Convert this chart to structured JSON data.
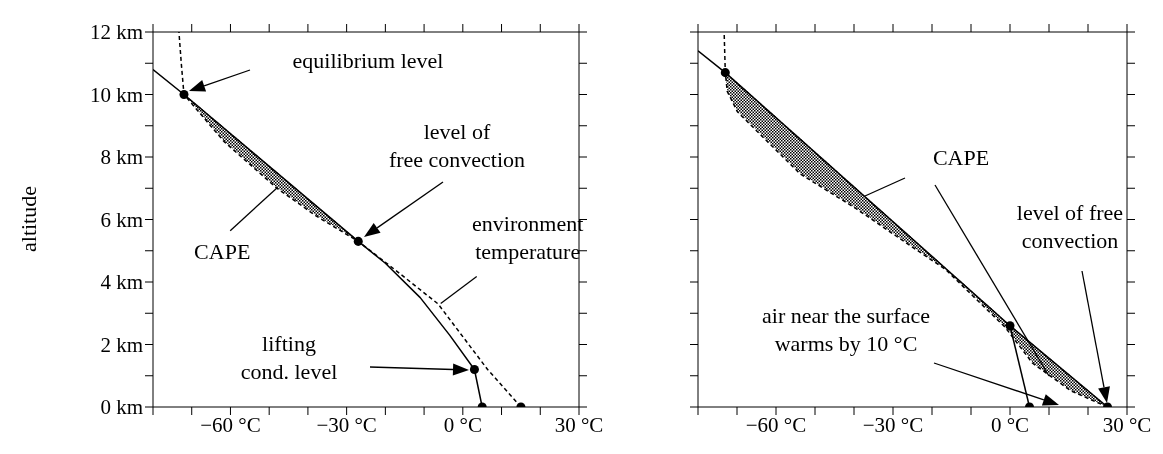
{
  "chart_data": [
    {
      "type": "line",
      "ylabel": "altitude",
      "xlim": [
        -80,
        30
      ],
      "ylim": [
        0,
        12
      ],
      "xticks": [
        {
          "value": -80,
          "label": null
        },
        {
          "value": -70,
          "label": null
        },
        {
          "value": -60,
          "label": "−60 °C"
        },
        {
          "value": -50,
          "label": null
        },
        {
          "value": -40,
          "label": null
        },
        {
          "value": -30,
          "label": "−30 °C"
        },
        {
          "value": -20,
          "label": null
        },
        {
          "value": -10,
          "label": null
        },
        {
          "value": 0,
          "label": "0 °C"
        },
        {
          "value": 10,
          "label": null
        },
        {
          "value": 20,
          "label": null
        },
        {
          "value": 30,
          "label": "30 °C"
        }
      ],
      "yticks": [
        {
          "value": 0,
          "label": "0 km"
        },
        {
          "value": 1,
          "label": null
        },
        {
          "value": 2,
          "label": "2 km"
        },
        {
          "value": 3,
          "label": null
        },
        {
          "value": 4,
          "label": "4 km"
        },
        {
          "value": 5,
          "label": null
        },
        {
          "value": 6,
          "label": "6 km"
        },
        {
          "value": 7,
          "label": null
        },
        {
          "value": 8,
          "label": "8 km"
        },
        {
          "value": 9,
          "label": null
        },
        {
          "value": 10,
          "label": "10 km"
        },
        {
          "value": 11,
          "label": null
        },
        {
          "value": 12,
          "label": "12 km"
        }
      ],
      "series": [
        {
          "type": "area",
          "color": "#000000",
          "x": [
            -27,
            -72,
            -61.7,
            -48,
            -37.7,
            -27
          ],
          "values": [
            5.3,
            10,
            8.5,
            7.0,
            6.1,
            5.3
          ]
        },
        {
          "type": "line",
          "line_style": "dashed",
          "color": "#000000",
          "x": [
            15,
            6.4,
            -6.4,
            -17.6,
            -27,
            -37.7,
            -48,
            -61.7,
            -72,
            -72.7,
            -73.3
          ],
          "values": [
            0,
            1.2,
            3.3,
            4.4,
            5.3,
            6.1,
            7.0,
            8.5,
            10,
            11,
            12
          ]
        },
        {
          "type": "line",
          "line_style": "solid",
          "color": "#000000",
          "x": [
            5,
            3,
            -3.4,
            -11,
            -20,
            -27,
            -72,
            -80
          ],
          "values": [
            0,
            1.2,
            2.3,
            3.5,
            4.6,
            5.3,
            10,
            10.8
          ]
        },
        {
          "type": "scatter",
          "marker": "circle",
          "color": "#000000",
          "x": [
            15,
            5,
            3,
            -27,
            -72
          ],
          "values": [
            0,
            0,
            1.2,
            5.3,
            10
          ]
        }
      ],
      "annotations": [
        "equilibrium level",
        "level of\nfree convection",
        {
          "text": "CAPE",
          "x": -48,
          "y": 7.0
        },
        {
          "text": "environment\ntemperature",
          "x": -6.4,
          "y": 3.3
        },
        "lifting\ncond. level"
      ]
    },
    {
      "type": "line",
      "xlim": [
        -80,
        30
      ],
      "ylim": [
        0,
        12
      ],
      "tick_labels": "x",
      "xticks": [
        {
          "value": -80,
          "label": null
        },
        {
          "value": -70,
          "label": null
        },
        {
          "value": -60,
          "label": "−60 °C"
        },
        {
          "value": -50,
          "label": null
        },
        {
          "value": -40,
          "label": null
        },
        {
          "value": -30,
          "label": "−30 °C"
        },
        {
          "value": -20,
          "label": null
        },
        {
          "value": -10,
          "label": null
        },
        {
          "value": 0,
          "label": "0 °C"
        },
        {
          "value": 10,
          "label": null
        },
        {
          "value": 20,
          "label": null
        },
        {
          "value": 30,
          "label": "30 °C"
        }
      ],
      "yticks": [
        {
          "value": 0,
          "label": null
        },
        {
          "value": 1,
          "label": null
        },
        {
          "value": 2,
          "label": null
        },
        {
          "value": 3,
          "label": null
        },
        {
          "value": 4,
          "label": null
        },
        {
          "value": 5,
          "label": null
        },
        {
          "value": 6,
          "label": null
        },
        {
          "value": 7,
          "label": null
        },
        {
          "value": 8,
          "label": null
        },
        {
          "value": 9,
          "label": null
        },
        {
          "value": 10,
          "label": null
        },
        {
          "value": 11,
          "label": null
        },
        {
          "value": 12,
          "label": null
        }
      ],
      "series": [
        {
          "type": "area",
          "color": "#000000",
          "x": [
            25,
            0,
            -73,
            -72.5,
            -69.9,
            -62.8,
            -53.8,
            -39.6,
            -27.2,
            -16.5,
            -1.3,
            5.8,
            15.6,
            25
          ],
          "values": [
            0,
            2.6,
            10.7,
            10.1,
            9.45,
            8.57,
            7.46,
            6.36,
            5.3,
            4.4,
            2.56,
            1.4,
            0.52,
            0
          ]
        },
        {
          "type": "line",
          "line_style": "dashed",
          "color": "#000000",
          "x": [
            25,
            15.6,
            5.8,
            -1.3,
            -16.5,
            -27.2,
            -39.6,
            -53.8,
            -62.8,
            -69.9,
            -72.5,
            -73,
            -73.3
          ],
          "values": [
            0,
            0.52,
            1.4,
            2.56,
            4.4,
            5.3,
            6.36,
            7.46,
            8.57,
            9.45,
            10.1,
            10.7,
            12
          ]
        },
        {
          "type": "line",
          "line_style": "solid",
          "color": "#000000",
          "x": [
            25,
            0,
            -73,
            -80
          ],
          "values": [
            0,
            2.6,
            10.7,
            11.4
          ]
        },
        {
          "type": "line",
          "line_style": "solid",
          "color": "#000000",
          "x": [
            5,
            0
          ],
          "values": [
            0,
            2.6
          ]
        },
        {
          "type": "scatter",
          "marker": "circle",
          "color": "#000000",
          "x": [
            5,
            25,
            0,
            -73
          ],
          "values": [
            0,
            0,
            2.6,
            10.7
          ]
        }
      ],
      "annotations": [
        "CAPE",
        "level of free\nconvection",
        "air near the surface\nwarms by 10 °C"
      ]
    }
  ]
}
